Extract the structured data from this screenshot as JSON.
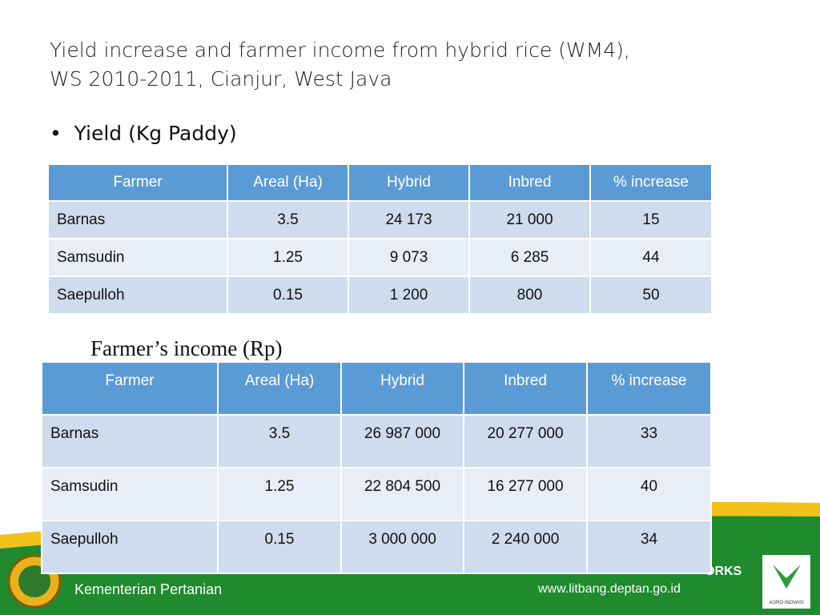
{
  "header": {
    "title_line1": "Yield increase and farmer income from hybrid rice (WM4),",
    "title_line2": "WS  2010-2011, Cianjur, West Java"
  },
  "bullet": "Yield (Kg Paddy)",
  "yield_table": {
    "columns": [
      "Farmer",
      "Areal (Ha)",
      "Hybrid",
      "Inbred",
      "% increase"
    ],
    "rows": [
      [
        "Barnas",
        "3.5",
        "24 173",
        "21 000",
        "15"
      ],
      [
        "Samsudin",
        "1.25",
        "9 073",
        "6 285",
        "44"
      ],
      [
        "Saepulloh",
        "0.15",
        "1 200",
        "800",
        "50"
      ]
    ]
  },
  "income_heading": "Farmer’s income  (Rp)",
  "income_table": {
    "columns": [
      "Farmer",
      "Areal (Ha)",
      "Hybrid",
      "Inbred",
      "% increase"
    ],
    "rows": [
      [
        "Barnas",
        "3.5",
        "26 987 000",
        "20 277 000",
        "33"
      ],
      [
        "Samsudin",
        "1.25",
        "22 804 500",
        "16 277 000",
        "40"
      ],
      [
        "Saepulloh",
        "0.15",
        "3 000 000",
        "2 240 000",
        "34"
      ]
    ]
  },
  "footer": {
    "ministry": "Kementerian Pertanian",
    "partial": "ORKS",
    "url": "www.litbang.deptan.go.id",
    "logo_text": "AGRO INOVASI"
  }
}
